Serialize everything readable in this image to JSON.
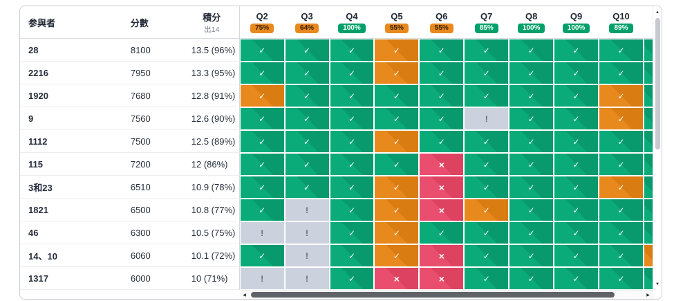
{
  "table": {
    "columns": {
      "participant": "参與者",
      "score": "分數",
      "points": "積分",
      "points_sub": "出14"
    },
    "questions": [
      {
        "label": "Q2",
        "pct": "75%",
        "color": "orange"
      },
      {
        "label": "Q3",
        "pct": "64%",
        "color": "orange"
      },
      {
        "label": "Q4",
        "pct": "100%",
        "color": "green"
      },
      {
        "label": "Q5",
        "pct": "55%",
        "color": "orange"
      },
      {
        "label": "Q6",
        "pct": "55%",
        "color": "orange"
      },
      {
        "label": "Q7",
        "pct": "85%",
        "color": "green"
      },
      {
        "label": "Q8",
        "pct": "100%",
        "color": "green"
      },
      {
        "label": "Q9",
        "pct": "100%",
        "color": "green"
      },
      {
        "label": "Q10",
        "pct": "89%",
        "color": "green"
      }
    ],
    "marks": {
      "g": "✓",
      "o": "✓",
      "r": "×",
      "x": "!"
    },
    "colors": {
      "correct_green": "#0aab79",
      "partial_orange": "#e8891e",
      "wrong_red": "#ea4e6e",
      "unanswered_gray": "#ccd2dd"
    },
    "rows": [
      {
        "participant": "28",
        "score": "8100",
        "points": "13.5 (96%)",
        "answers": [
          "g",
          "g",
          "g",
          "o",
          "g",
          "g",
          "g",
          "g",
          "g"
        ],
        "partial": "g"
      },
      {
        "participant": "2216",
        "score": "7950",
        "points": "13.3 (95%)",
        "answers": [
          "g",
          "g",
          "g",
          "o",
          "g",
          "g",
          "g",
          "g",
          "g"
        ],
        "partial": "g"
      },
      {
        "participant": "1920",
        "score": "7680",
        "points": "12.8 (91%)",
        "answers": [
          "o",
          "g",
          "g",
          "g",
          "g",
          "g",
          "g",
          "g",
          "o"
        ],
        "partial": "g"
      },
      {
        "participant": "9",
        "score": "7560",
        "points": "12.6 (90%)",
        "answers": [
          "g",
          "g",
          "g",
          "g",
          "g",
          "x",
          "g",
          "g",
          "o"
        ],
        "partial": "g"
      },
      {
        "participant": "1112",
        "score": "7500",
        "points": "12.5 (89%)",
        "answers": [
          "g",
          "g",
          "g",
          "o",
          "g",
          "g",
          "g",
          "g",
          "g"
        ],
        "partial": "g"
      },
      {
        "participant": "115",
        "score": "7200",
        "points": "12 (86%)",
        "answers": [
          "g",
          "g",
          "g",
          "g",
          "r",
          "g",
          "g",
          "g",
          "g"
        ],
        "partial": "g"
      },
      {
        "participant": "3和23",
        "score": "6510",
        "points": "10.9 (78%)",
        "answers": [
          "g",
          "g",
          "g",
          "o",
          "r",
          "g",
          "g",
          "g",
          "o"
        ],
        "partial": "g"
      },
      {
        "participant": "1821",
        "score": "6500",
        "points": "10.8 (77%)",
        "answers": [
          "g",
          "x",
          "g",
          "o",
          "r",
          "o",
          "g",
          "g",
          "g"
        ],
        "partial": "g"
      },
      {
        "participant": "46",
        "score": "6300",
        "points": "10.5 (75%)",
        "answers": [
          "x",
          "x",
          "g",
          "o",
          "g",
          "g",
          "g",
          "g",
          "g"
        ],
        "partial": "g"
      },
      {
        "participant": "14、10",
        "score": "6060",
        "points": "10.1 (72%)",
        "answers": [
          "g",
          "x",
          "g",
          "o",
          "r",
          "g",
          "g",
          "g",
          "g"
        ],
        "partial": "o"
      },
      {
        "participant": "1317",
        "score": "6000",
        "points": "10 (71%)",
        "answers": [
          "x",
          "x",
          "g",
          "r",
          "r",
          "g",
          "g",
          "g",
          "g"
        ],
        "partial": "g"
      }
    ]
  },
  "scrollbars": {
    "up": "▲",
    "down": "▼",
    "left": "◀",
    "right": "▶"
  }
}
